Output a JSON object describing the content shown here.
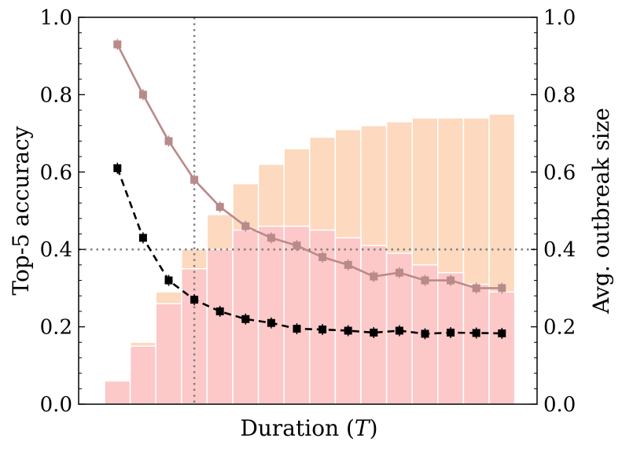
{
  "chart_data": {
    "type": "bar+line",
    "title": "",
    "xlabel_prefix": "Duration (",
    "xlabel_var": "T",
    "xlabel_suffix": ")",
    "ylabel_left": "Top-5 accuracy",
    "ylabel_right": "Avg. outbreak size",
    "ylim_left": [
      0.0,
      1.0
    ],
    "ylim_right": [
      0.0,
      1.0
    ],
    "y_ticks": [
      "0.0",
      "0.2",
      "0.4",
      "0.6",
      "0.8",
      "1.0"
    ],
    "x_ticks_labeled": false,
    "reference_lines": {
      "horizontal_y": 0.4,
      "vertical_x_index": 3
    },
    "bar_series": [
      {
        "name": "avg outbreak size (orange)",
        "color": "#fdd9bf",
        "values": [
          0.06,
          0.16,
          0.29,
          0.4,
          0.49,
          0.57,
          0.62,
          0.66,
          0.69,
          0.71,
          0.72,
          0.73,
          0.74,
          0.74,
          0.74,
          0.75
        ]
      },
      {
        "name": "avg outbreak size (pink)",
        "color": "#fdc8c8",
        "values": [
          0.06,
          0.15,
          0.26,
          0.35,
          0.4,
          0.45,
          0.46,
          0.46,
          0.45,
          0.43,
          0.41,
          0.39,
          0.36,
          0.34,
          0.31,
          0.29
        ]
      }
    ],
    "line_series": [
      {
        "name": "top-5 accuracy (solid)",
        "color": "#b98a8a",
        "style": "solid",
        "values": [
          0.93,
          0.8,
          0.68,
          0.58,
          0.51,
          0.46,
          0.43,
          0.41,
          0.38,
          0.36,
          0.33,
          0.34,
          0.32,
          0.32,
          0.3,
          0.3
        ]
      },
      {
        "name": "top-5 accuracy (dashed)",
        "color": "#000000",
        "style": "dashed",
        "values": [
          0.61,
          0.43,
          0.32,
          0.27,
          0.24,
          0.22,
          0.21,
          0.195,
          0.193,
          0.19,
          0.185,
          0.19,
          0.182,
          0.185,
          0.184,
          0.183
        ]
      }
    ]
  }
}
